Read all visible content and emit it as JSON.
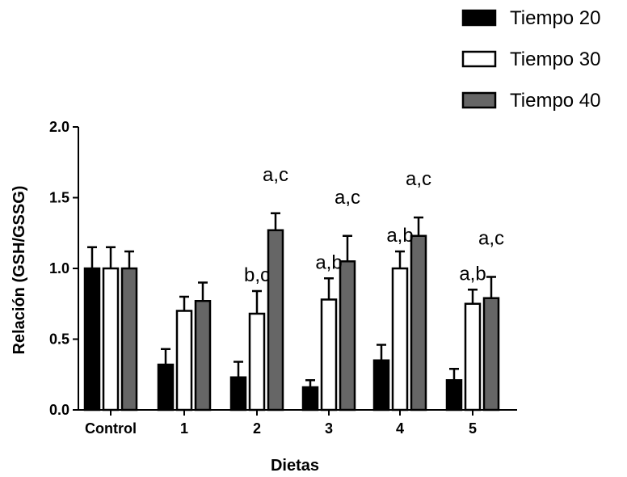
{
  "chart_data": {
    "type": "bar",
    "xlabel": "Dietas",
    "ylabel": "Relación (GSH/GSSG)",
    "ylim": [
      0,
      2.0
    ],
    "yticks": [
      "0.0",
      "0.5",
      "1.0",
      "1.5",
      "2.0"
    ],
    "grid": false,
    "legend_position": "top-right",
    "categories": [
      "Control",
      "1",
      "2",
      "3",
      "4",
      "5"
    ],
    "series": [
      {
        "name": "Tiempo 20",
        "color": "#000000",
        "values": [
          1.0,
          0.32,
          0.23,
          0.16,
          0.35,
          0.21
        ],
        "errors": [
          0.15,
          0.11,
          0.11,
          0.05,
          0.11,
          0.08
        ]
      },
      {
        "name": "Tiempo 30",
        "color": "#ffffff",
        "values": [
          1.0,
          0.7,
          0.68,
          0.78,
          1.0,
          0.75
        ],
        "errors": [
          0.15,
          0.1,
          0.16,
          0.15,
          0.12,
          0.1
        ]
      },
      {
        "name": "Tiempo 40",
        "color": "#666666",
        "values": [
          1.0,
          0.77,
          1.27,
          1.05,
          1.23,
          0.79
        ],
        "errors": [
          0.12,
          0.13,
          0.12,
          0.18,
          0.13,
          0.15
        ]
      }
    ],
    "annotations": [
      {
        "text": "a,c",
        "category": "2",
        "series": "Tiempo 40"
      },
      {
        "text": "b,c",
        "category": "2",
        "series": "Tiempo 30"
      },
      {
        "text": "a,c",
        "category": "3",
        "series": "Tiempo 40"
      },
      {
        "text": "a,b",
        "category": "3",
        "series": "Tiempo 30"
      },
      {
        "text": "a,c",
        "category": "4",
        "series": "Tiempo 40"
      },
      {
        "text": "a,b",
        "category": "4",
        "series": "Tiempo 30"
      },
      {
        "text": "a,c",
        "category": "5",
        "series": "Tiempo 40"
      },
      {
        "text": "a,b",
        "category": "5",
        "series": "Tiempo 30"
      }
    ]
  }
}
